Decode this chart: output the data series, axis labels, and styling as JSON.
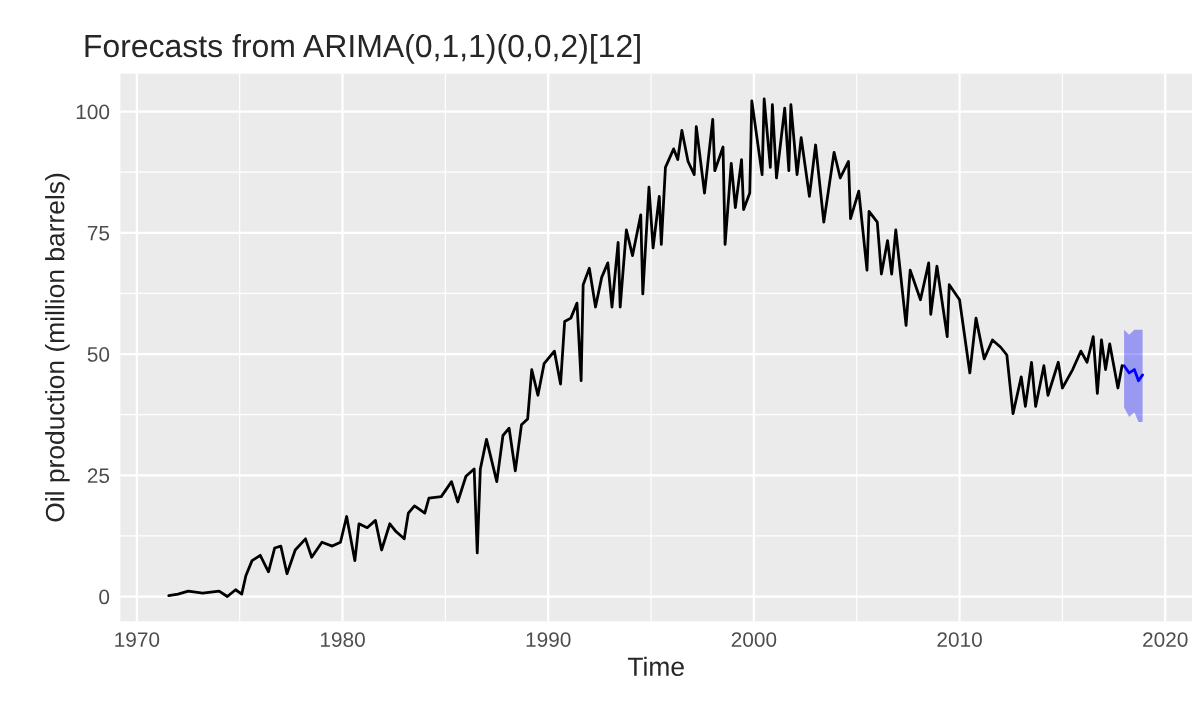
{
  "chart_data": {
    "type": "line",
    "title": "Forecasts from ARIMA(0,1,1)(0,0,2)[12]",
    "xlabel": "Time",
    "ylabel": "Oil production (million barrels)",
    "xlim": [
      1969.2,
      2021.3
    ],
    "xticks": [
      1970,
      1980,
      1990,
      2000,
      2010,
      2020
    ],
    "ylim": [
      -5.1,
      107.8
    ],
    "yticks": [
      0,
      25,
      50,
      75,
      100
    ],
    "grid": true,
    "legend": false,
    "series": [
      {
        "color": "#000000",
        "x": [
          1971.55,
          1972.0,
          1972.5,
          1973.2,
          1974.0,
          1974.4,
          1974.8,
          1975.1,
          1975.3,
          1975.6,
          1976.0,
          1976.4,
          1976.7,
          1977.0,
          1977.3,
          1977.7,
          1978.2,
          1978.5,
          1979.0,
          1979.5,
          1979.9,
          1980.2,
          1980.6,
          1980.8,
          1981.2,
          1981.6,
          1981.9,
          1982.3,
          1982.6,
          1983.0,
          1983.2,
          1983.5,
          1984.0,
          1984.2,
          1984.8,
          1985.3,
          1985.6,
          1986.0,
          1986.4,
          1986.55,
          1986.7,
          1987.0,
          1987.5,
          1987.8,
          1988.1,
          1988.4,
          1988.7,
          1989.0,
          1989.2,
          1989.5,
          1989.8,
          1990.3,
          1990.6,
          1990.8,
          1991.1,
          1991.4,
          1991.6,
          1991.7,
          1992.0,
          1992.3,
          1992.6,
          1992.9,
          1993.1,
          1993.4,
          1993.5,
          1993.8,
          1994.1,
          1994.5,
          1994.6,
          1994.9,
          1995.1,
          1995.4,
          1995.5,
          1995.7,
          1996.1,
          1996.3,
          1996.5,
          1996.8,
          1997.1,
          1997.2,
          1997.6,
          1998.0,
          1998.1,
          1998.5,
          1998.6,
          1998.9,
          1999.1,
          1999.4,
          1999.5,
          1999.8,
          1999.9,
          2000.4,
          2000.5,
          2000.8,
          2000.9,
          2001.1,
          2001.5,
          2001.7,
          2001.8,
          2002.1,
          2002.3,
          2002.7,
          2003.0,
          2003.4,
          2003.9,
          2004.2,
          2004.6,
          2004.7,
          2005.1,
          2005.5,
          2005.6,
          2006.0,
          2006.2,
          2006.5,
          2006.7,
          2006.9,
          2007.4,
          2007.6,
          2008.1,
          2008.5,
          2008.6,
          2008.9,
          2009.4,
          2009.5,
          2010.0,
          2010.5,
          2010.8,
          2011.2,
          2011.6,
          2012.0,
          2012.3,
          2012.6,
          2013.0,
          2013.2,
          2013.5,
          2013.7,
          2014.1,
          2014.3,
          2014.8,
          2015.0,
          2015.5,
          2015.9,
          2016.2,
          2016.5,
          2016.7,
          2016.9,
          2017.1,
          2017.3,
          2017.7,
          2017.9
        ],
        "values": [
          0.2,
          0.5,
          1.1,
          0.7,
          1.1,
          0,
          1.4,
          0.5,
          4.3,
          7.4,
          8.5,
          5.1,
          10.0,
          10.4,
          4.7,
          9.6,
          11.9,
          8.1,
          11.2,
          10.4,
          11.2,
          16.5,
          7.4,
          15.0,
          14.2,
          15.7,
          9.6,
          15.0,
          13.4,
          11.9,
          17.2,
          18.7,
          17.2,
          20.3,
          20.6,
          23.7,
          19.5,
          24.8,
          26.3,
          9,
          26.3,
          32.4,
          23.7,
          33.2,
          34.7,
          25.9,
          35.4,
          36.6,
          46.8,
          41.5,
          48.0,
          50.6,
          43.8,
          56.7,
          57.4,
          60.5,
          44.5,
          64.3,
          67.7,
          59.7,
          65.8,
          68.8,
          59.7,
          73.0,
          59.7,
          75.6,
          70.3,
          78.7,
          62.4,
          84.4,
          71.9,
          82.5,
          72.6,
          88.5,
          92.3,
          90.1,
          96.1,
          89.7,
          87.0,
          96.9,
          83.2,
          98.4,
          87.8,
          92.7,
          72.6,
          89.3,
          80.2,
          90.1,
          79.8,
          83.2,
          102.2,
          87.0,
          102.6,
          88.5,
          101.4,
          86.3,
          100.7,
          87.8,
          101.4,
          87.0,
          94.6,
          82.5,
          93.1,
          77.2,
          91.6,
          86.3,
          89.7,
          77.9,
          83.6,
          67.3,
          79.4,
          77.2,
          66.5,
          73.4,
          66.5,
          75.6,
          55.9,
          67.3,
          61.2,
          68.8,
          58.2,
          68.1,
          53.6,
          64.3,
          61.2,
          46.1,
          57.4,
          49.0,
          52.9,
          51.4,
          49.8,
          37.7,
          45.3,
          39.2,
          48.3,
          39.2,
          47.6,
          41.5,
          48.3,
          43.0,
          46.8,
          50.6,
          48.3,
          53.6,
          41.9,
          52.9,
          46.8,
          52.1,
          43.0,
          47.6
        ]
      },
      {
        "color": "#0000ff",
        "x": [
          2018.0,
          2018.25,
          2018.5,
          2018.7,
          2018.9
        ],
        "values": [
          47.6,
          46.1,
          46.8,
          44.5,
          45.7
        ],
        "lower": [
          39,
          37,
          38,
          36,
          36
        ],
        "upper": [
          55,
          54,
          55,
          55,
          55
        ]
      }
    ]
  }
}
